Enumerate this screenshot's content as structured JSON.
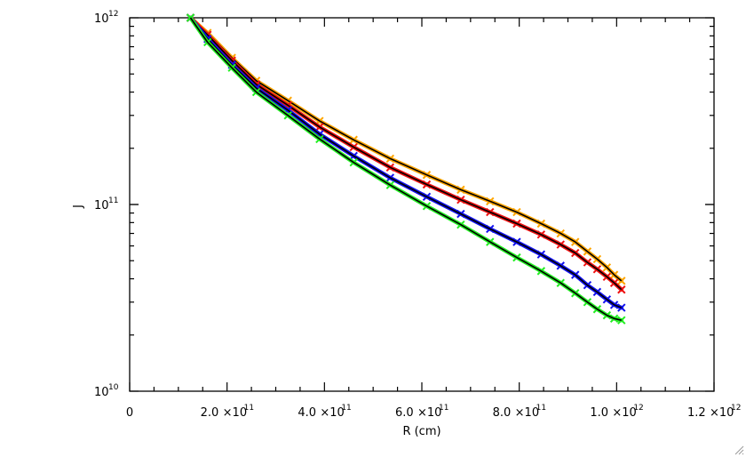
{
  "chart_data": {
    "type": "line",
    "title": "",
    "xlabel": "R (cm)",
    "ylabel": "J",
    "xlim": [
      0,
      1200000000000.0
    ],
    "ylim": [
      10000000000.0,
      1000000000000.0
    ],
    "yscale": "log",
    "grid": false,
    "legend": "none",
    "x_ticks": [
      {
        "value": 0,
        "label": "0"
      },
      {
        "value": 200000000000.0,
        "mantissa": "2.0",
        "exp": "11"
      },
      {
        "value": 400000000000.0,
        "mantissa": "4.0",
        "exp": "11"
      },
      {
        "value": 600000000000.0,
        "mantissa": "6.0",
        "exp": "11"
      },
      {
        "value": 800000000000.0,
        "mantissa": "8.0",
        "exp": "11"
      },
      {
        "value": 1000000000000.0,
        "mantissa": "1.0",
        "exp": "12"
      },
      {
        "value": 1200000000000.0,
        "mantissa": "1.2",
        "exp": "12"
      }
    ],
    "y_ticks": [
      {
        "value": 10000000000.0,
        "base": "10",
        "exp": "10"
      },
      {
        "value": 100000000000.0,
        "base": "10",
        "exp": "11"
      },
      {
        "value": 1000000000000.0,
        "base": "10",
        "exp": "12"
      }
    ],
    "x": [
      125000000000.0,
      160000000000.0,
      210000000000.0,
      260000000000.0,
      325000000000.0,
      390000000000.0,
      460000000000.0,
      535000000000.0,
      610000000000.0,
      680000000000.0,
      740000000000.0,
      795000000000.0,
      845000000000.0,
      885000000000.0,
      915000000000.0,
      940000000000.0,
      960000000000.0,
      980000000000.0,
      995000000000.0,
      1010000000000.0
    ],
    "series": [
      {
        "color": "#ffa500",
        "values": [
          1000000000000.0,
          830000000000.0,
          610000000000.0,
          460000000000.0,
          360000000000.0,
          280000000000.0,
          222000000000.0,
          176000000000.0,
          144000000000.0,
          120000000000.0,
          104000000000.0,
          91000000000.0,
          79000000000.0,
          70000000000.0,
          63000000000.0,
          56000000000.0,
          51000000000.0,
          46000000000.0,
          42000000000.0,
          39000000000.0
        ]
      },
      {
        "color": "#ee1111",
        "values": [
          1000000000000.0,
          810000000000.0,
          590000000000.0,
          440000000000.0,
          340000000000.0,
          260000000000.0,
          203000000000.0,
          158000000000.0,
          128000000000.0,
          106000000000.0,
          91000000000.0,
          79000000000.0,
          69000000000.0,
          61000000000.0,
          55000000000.0,
          49000000000.0,
          45000000000.0,
          41000000000.0,
          38000000000.0,
          35000000000.0
        ]
      },
      {
        "color": "#1111ee",
        "values": [
          1000000000000.0,
          770000000000.0,
          560000000000.0,
          420000000000.0,
          320000000000.0,
          238000000000.0,
          182000000000.0,
          139000000000.0,
          110000000000.0,
          89000000000.0,
          74000000000.0,
          63000000000.0,
          54000000000.0,
          47000000000.0,
          42000000000.0,
          37000000000.0,
          34000000000.0,
          31000000000.0,
          29000000000.0,
          28000000000.0
        ]
      },
      {
        "color": "#22ee22",
        "values": [
          1000000000000.0,
          740000000000.0,
          540000000000.0,
          400000000000.0,
          300000000000.0,
          224000000000.0,
          168000000000.0,
          127000000000.0,
          98000000000.0,
          78000000000.0,
          63000000000.0,
          52000000000.0,
          44000000000.0,
          38000000000.0,
          33500000000.0,
          30000000000.0,
          27500000000.0,
          25500000000.0,
          24500000000.0,
          24000000000.0
        ]
      }
    ],
    "fit_line_color": "#000000"
  }
}
